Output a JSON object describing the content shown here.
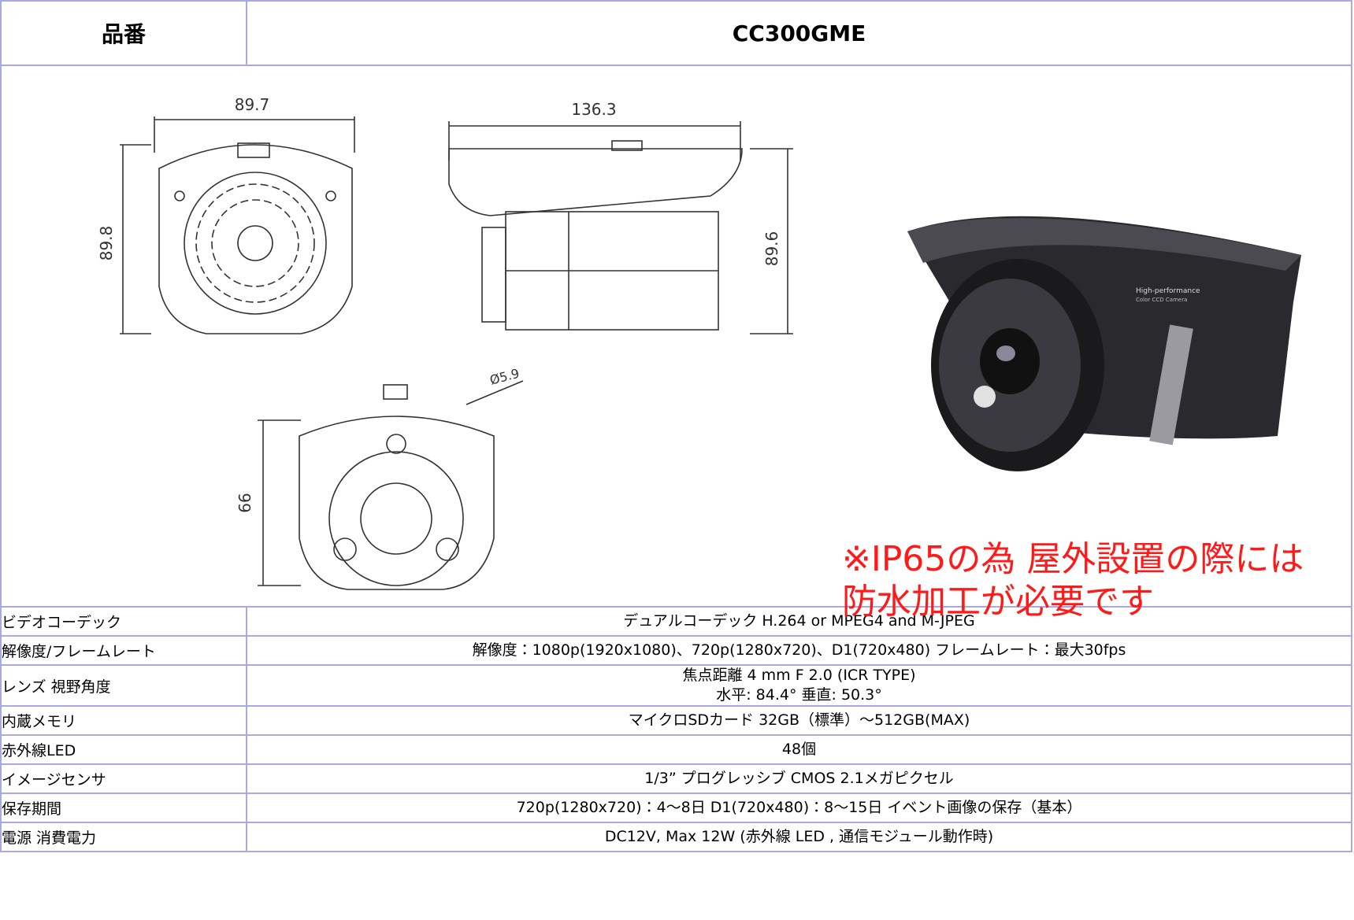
{
  "header": {
    "label": "品番",
    "value": "CC300GME"
  },
  "drawings": {
    "front": {
      "width": "89.7",
      "height": "89.8"
    },
    "side": {
      "depth": "136.3",
      "height": "89.6"
    },
    "bottom": {
      "diameter": "Ø5.9",
      "height": "66"
    },
    "photo_text": [
      "High-performance",
      "Color CCD Camera"
    ]
  },
  "note": [
    "※IP65の為 屋外設置の際には",
    "防水加工が必要です"
  ],
  "rows": [
    {
      "label": "ビデオコーデック",
      "value": [
        "デュアルコーデック  H.264 or MPEG4 and M-JPEG"
      ]
    },
    {
      "label": "解像度/フレームレート",
      "value": [
        "解像度：1080p(1920x1080)、720p(1280x720)、D1(720x480)  フレームレート：最大30fps"
      ]
    },
    {
      "label": "レンズ  視野角度",
      "value": [
        "焦点距離 4 mm F 2.0 (ICR TYPE)",
        "水平: 84.4°   垂直: 50.3°"
      ]
    },
    {
      "label": "内蔵メモリ",
      "value": [
        "マイクロSDカード   32GB（標準）～512GB(MAX)"
      ]
    },
    {
      "label": "赤外線LED",
      "value": [
        "48個"
      ]
    },
    {
      "label": "イメージセンサ",
      "value": [
        "1/3” プログレッシブ CMOS 2.1メガピクセル"
      ]
    },
    {
      "label": "保存期間",
      "value": [
        "720p(1280x720)：4～8日      D1(720x480)：8～15日      イベント画像の保存（基本）"
      ]
    },
    {
      "label": "電源  消費電力",
      "value": [
        "DC12V, Max 12W (赤外線 LED , 通信モジュール動作時)"
      ]
    }
  ]
}
